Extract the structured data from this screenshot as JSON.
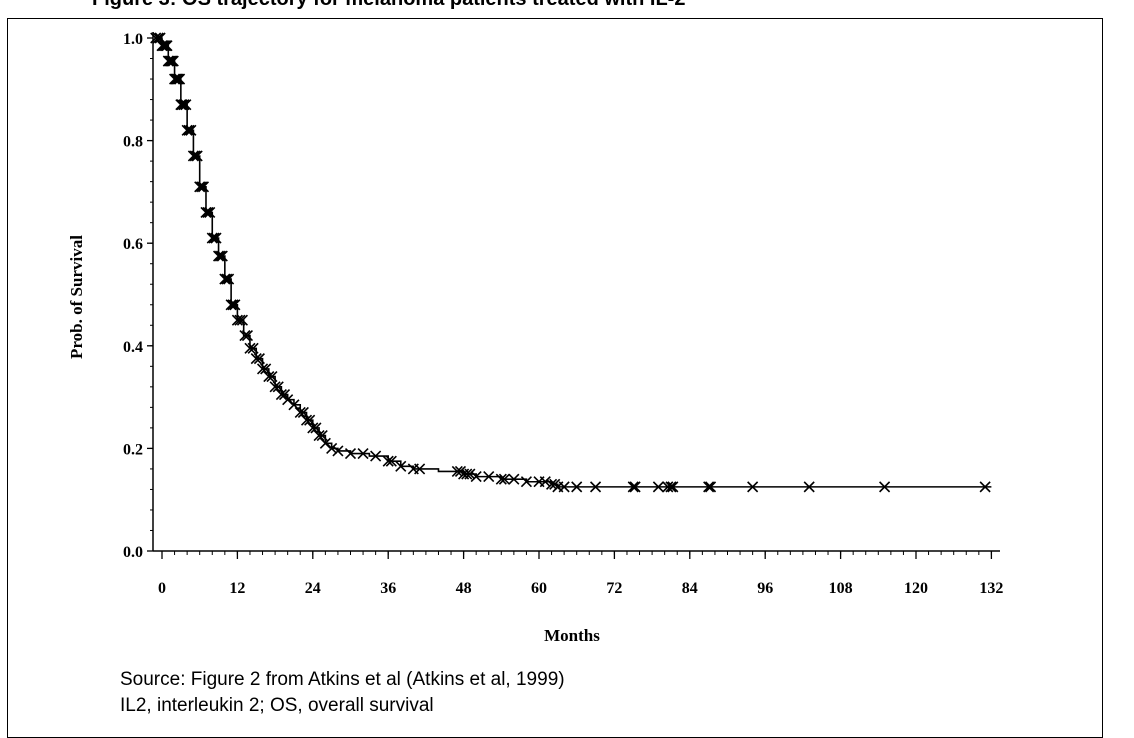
{
  "figure": {
    "title": "Figure 3: OS trajectory for melanoma patients treated with IL-2",
    "source_note": "Source: Figure 2 from Atkins et al (Atkins et al, 1999)",
    "abbrev_note": "IL2, interleukin 2; OS, overall survival"
  },
  "chart_data": {
    "type": "line",
    "step": true,
    "xlabel": "Months",
    "ylabel": "Prob. of Survival",
    "xlim": [
      -1,
      132
    ],
    "ylim": [
      0,
      1.0
    ],
    "x_ticks": [
      0,
      12,
      24,
      36,
      48,
      60,
      72,
      84,
      96,
      108,
      120,
      132
    ],
    "y_ticks": [
      0.0,
      0.2,
      0.4,
      0.6,
      0.8,
      1.0
    ],
    "y_tick_labels": [
      "0.0",
      "0.2",
      "0.4",
      "0.6",
      "0.8",
      "1.0"
    ],
    "grid": false,
    "series": [
      {
        "curve": [
          [
            -1,
            1.0
          ],
          [
            0,
            0.985
          ],
          [
            1,
            0.955
          ],
          [
            2,
            0.92
          ],
          [
            3,
            0.87
          ],
          [
            4,
            0.82
          ],
          [
            5,
            0.77
          ],
          [
            6,
            0.71
          ],
          [
            7,
            0.66
          ],
          [
            8,
            0.61
          ],
          [
            9,
            0.575
          ],
          [
            10,
            0.53
          ],
          [
            11,
            0.48
          ],
          [
            12,
            0.45
          ],
          [
            13,
            0.42
          ],
          [
            14,
            0.395
          ],
          [
            15,
            0.375
          ],
          [
            16,
            0.355
          ],
          [
            17,
            0.34
          ],
          [
            18,
            0.32
          ],
          [
            19,
            0.305
          ],
          [
            20,
            0.295
          ],
          [
            21,
            0.285
          ],
          [
            22,
            0.27
          ],
          [
            23,
            0.255
          ],
          [
            24,
            0.24
          ],
          [
            25,
            0.225
          ],
          [
            26,
            0.21
          ],
          [
            27,
            0.2
          ],
          [
            28,
            0.195
          ],
          [
            30,
            0.19
          ],
          [
            33,
            0.185
          ],
          [
            36,
            0.175
          ],
          [
            38,
            0.165
          ],
          [
            40,
            0.16
          ],
          [
            44,
            0.155
          ],
          [
            48,
            0.15
          ],
          [
            50,
            0.145
          ],
          [
            54,
            0.14
          ],
          [
            58,
            0.135
          ],
          [
            62,
            0.13
          ],
          [
            63,
            0.125
          ],
          [
            70,
            0.125
          ],
          [
            132,
            0.125
          ]
        ],
        "censor_x": [
          -1,
          -0.6,
          -0.3,
          0,
          0.2,
          0.4,
          0.6,
          0.8,
          1,
          1.2,
          1.4,
          1.6,
          1.8,
          2,
          2.2,
          2.4,
          2.6,
          2.8,
          3,
          3.2,
          3.5,
          3.8,
          4,
          4.3,
          4.6,
          5,
          5.3,
          5.6,
          6,
          6.3,
          6.6,
          7,
          7.3,
          7.6,
          8,
          8.3,
          8.6,
          9,
          9.3,
          9.6,
          10,
          10.3,
          10.6,
          11,
          11.3,
          11.6,
          12,
          12.4,
          12.8,
          13.2,
          13.6,
          14,
          14.5,
          15,
          15.5,
          16,
          16.5,
          17,
          17.5,
          18,
          18.5,
          19,
          19.5,
          20,
          21,
          22,
          22.5,
          23,
          23.5,
          24,
          24.5,
          25,
          25.5,
          26,
          27,
          28,
          30,
          32,
          34,
          36,
          36.5,
          38,
          40,
          41,
          47,
          47.5,
          48,
          48.5,
          49,
          50,
          52,
          54,
          54.5,
          56,
          58,
          60,
          61,
          62,
          62.5,
          63,
          64,
          66,
          69,
          75,
          75.3,
          79,
          80.5,
          81,
          81.3,
          87,
          87.3,
          94,
          103,
          115,
          131
        ]
      }
    ]
  }
}
